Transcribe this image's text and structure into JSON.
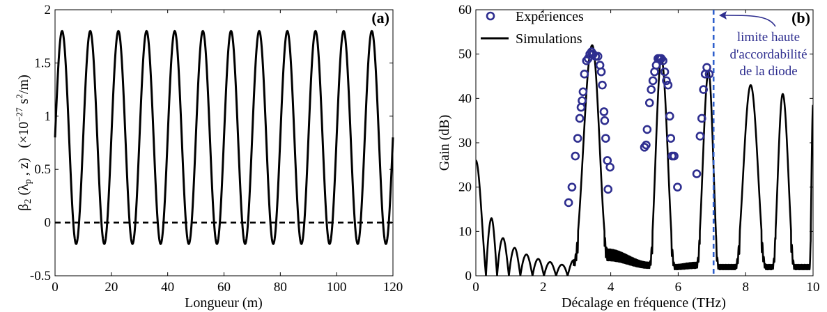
{
  "chart_data": [
    {
      "type": "line",
      "panel_label": "(a)",
      "xlabel": "Longueur (m)",
      "ylabel_main": "β",
      "ylabel_sub": "2",
      "ylabel_args": " (λ",
      "ylabel_args_sub": "p",
      "ylabel_args_end": " , z)",
      "ylabel_unit_pre": "(×10",
      "ylabel_unit_exp": "−27",
      "ylabel_unit_mid": " s",
      "ylabel_unit_exp2": "2",
      "ylabel_unit_end": "/m)",
      "xlim": [
        0,
        120
      ],
      "ylim": [
        -0.5,
        2
      ],
      "xticks": [
        "0",
        "20",
        "40",
        "60",
        "80",
        "100",
        "120"
      ],
      "xtick_values": [
        0,
        20,
        40,
        60,
        80,
        100,
        120
      ],
      "yticks": [
        "-0.5",
        "0",
        "0.5",
        "1",
        "1.5",
        "2"
      ],
      "ytick_values": [
        -0.5,
        0,
        0.5,
        1,
        1.5,
        2
      ],
      "series": [
        {
          "style": "solid",
          "function": "sinusoid",
          "mean": 0.8,
          "amplitude": 1.0,
          "period_m": 10,
          "start_value": 0.8,
          "max": 1.8,
          "min": -0.2
        },
        {
          "style": "dashed",
          "function": "constant",
          "value": 0
        }
      ]
    },
    {
      "type": "line+scatter",
      "panel_label": "(b)",
      "xlabel": "Décalage en fréquence (THz)",
      "ylabel": "Gain (dB)",
      "xlim": [
        0,
        10
      ],
      "ylim": [
        0,
        60
      ],
      "xticks": [
        "0",
        "2",
        "4",
        "6",
        "8",
        "10"
      ],
      "xtick_values": [
        0,
        2,
        4,
        6,
        8,
        10
      ],
      "yticks": [
        "0",
        "10",
        "20",
        "30",
        "40",
        "50",
        "60"
      ],
      "ytick_values": [
        0,
        10,
        20,
        30,
        40,
        50,
        60
      ],
      "legend_position": "top-left",
      "legend": [
        {
          "name": "Expériences",
          "marker": "circle",
          "color": "#2e2e8f"
        },
        {
          "name": "Simulations",
          "marker": "line",
          "color": "#000000"
        }
      ],
      "vline": {
        "x": 7.05,
        "color": "#2e5fcc",
        "style": "dashed"
      },
      "annotation_lines": [
        "limite haute",
        "d'accordabilité",
        "de la diode"
      ],
      "annotation_arrow_to_x": 7.05,
      "simulation_envelope": [
        [
          0,
          26
        ],
        [
          0.45,
          13
        ],
        [
          0.8,
          8.5
        ],
        [
          1.15,
          6.3
        ],
        [
          1.5,
          4.8
        ],
        [
          1.85,
          3.8
        ],
        [
          2.2,
          3.1
        ],
        [
          2.55,
          2.5
        ],
        [
          2.9,
          3.5
        ],
        [
          3.45,
          52
        ],
        [
          3.9,
          6
        ],
        [
          5.15,
          3
        ],
        [
          5.5,
          49
        ],
        [
          5.9,
          2.5
        ],
        [
          6.55,
          3
        ],
        [
          6.9,
          46
        ],
        [
          7.2,
          2.5
        ],
        [
          7.7,
          2.5
        ],
        [
          8.15,
          43
        ],
        [
          8.6,
          2.5
        ],
        [
          8.8,
          2.5
        ],
        [
          9.1,
          41
        ],
        [
          9.45,
          2.5
        ],
        [
          9.9,
          2.5
        ],
        [
          10,
          38.5
        ]
      ],
      "simulation_nulls": [
        0.3,
        0.63,
        0.98,
        1.32,
        1.68,
        2.02,
        2.38,
        2.72
      ],
      "experiment_points": [
        [
          2.75,
          16.5
        ],
        [
          2.85,
          20
        ],
        [
          2.95,
          27
        ],
        [
          3.02,
          31
        ],
        [
          3.08,
          35.5
        ],
        [
          3.12,
          38
        ],
        [
          3.15,
          39.5
        ],
        [
          3.18,
          41.5
        ],
        [
          3.22,
          45.5
        ],
        [
          3.28,
          48.5
        ],
        [
          3.33,
          49
        ],
        [
          3.38,
          50
        ],
        [
          3.43,
          50.5
        ],
        [
          3.48,
          50
        ],
        [
          3.55,
          49.5
        ],
        [
          3.62,
          49.5
        ],
        [
          3.68,
          47.5
        ],
        [
          3.72,
          46
        ],
        [
          3.75,
          43
        ],
        [
          3.8,
          37
        ],
        [
          3.82,
          35
        ],
        [
          3.85,
          31
        ],
        [
          3.9,
          26
        ],
        [
          3.92,
          19.5
        ],
        [
          3.98,
          24.5
        ],
        [
          5.0,
          29
        ],
        [
          5.05,
          29.5
        ],
        [
          5.08,
          33
        ],
        [
          5.15,
          39
        ],
        [
          5.2,
          42
        ],
        [
          5.25,
          44
        ],
        [
          5.3,
          46
        ],
        [
          5.35,
          47.5
        ],
        [
          5.4,
          49
        ],
        [
          5.45,
          49
        ],
        [
          5.5,
          49
        ],
        [
          5.55,
          48.5
        ],
        [
          5.6,
          46
        ],
        [
          5.65,
          44
        ],
        [
          5.7,
          43
        ],
        [
          5.75,
          36
        ],
        [
          5.78,
          31
        ],
        [
          5.82,
          27
        ],
        [
          5.88,
          27
        ],
        [
          5.98,
          20
        ],
        [
          6.55,
          23
        ],
        [
          6.65,
          31.5
        ],
        [
          6.7,
          35.5
        ],
        [
          6.75,
          42
        ],
        [
          6.8,
          45.5
        ],
        [
          6.85,
          47
        ],
        [
          6.92,
          45.5
        ]
      ]
    }
  ]
}
